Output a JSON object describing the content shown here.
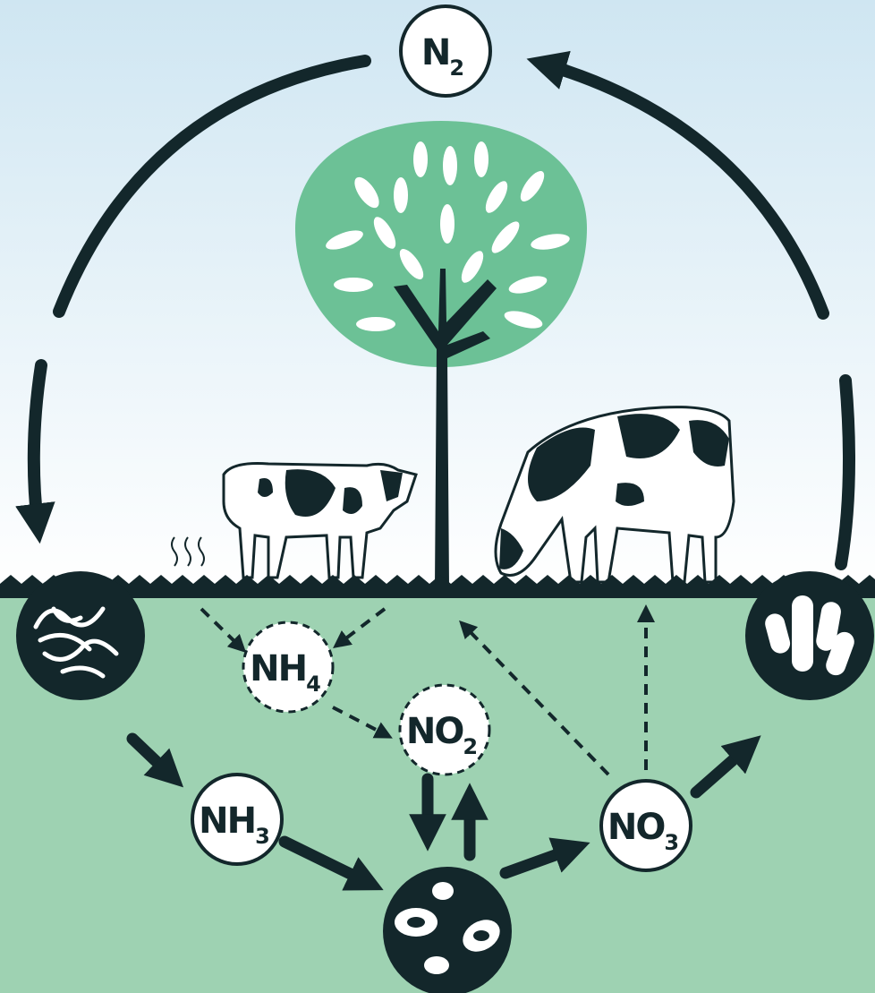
{
  "nodes": [
    {
      "label": "N",
      "subscript": "2"
    },
    {
      "label": "NH",
      "subscript": "4"
    },
    {
      "label": "NO",
      "subscript": "2"
    },
    {
      "label": "NH",
      "subscript": "3"
    },
    {
      "label": "NO",
      "subscript": "3"
    }
  ]
}
